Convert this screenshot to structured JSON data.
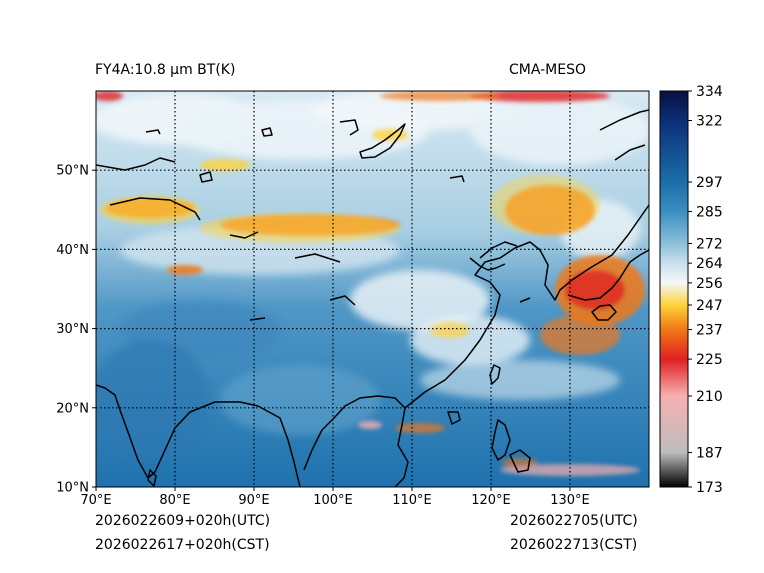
{
  "header": {
    "left_title": "FY4A:10.8 μm BT(K)",
    "right_title": "CMA-MESO"
  },
  "footer": {
    "init_utc": "2026022609+020h(UTC)",
    "init_cst": "2026022617+020h(CST)",
    "valid_utc": "2026022705(UTC)",
    "valid_cst": "2026022713(CST)"
  },
  "map": {
    "lon_range": [
      70,
      140
    ],
    "lat_range": [
      10,
      60
    ],
    "lon_ticks": [
      {
        "value": 70,
        "label": "70°E"
      },
      {
        "value": 80,
        "label": "80°E"
      },
      {
        "value": 90,
        "label": "90°E"
      },
      {
        "value": 100,
        "label": "100°E"
      },
      {
        "value": 110,
        "label": "110°E"
      },
      {
        "value": 120,
        "label": "120°E"
      },
      {
        "value": 130,
        "label": "130°E"
      }
    ],
    "lat_ticks": [
      {
        "value": 10,
        "label": "10°N"
      },
      {
        "value": 20,
        "label": "20°N"
      },
      {
        "value": 30,
        "label": "30°N"
      },
      {
        "value": 40,
        "label": "40°N"
      },
      {
        "value": 50,
        "label": "50°N"
      }
    ],
    "gridlines": "dotted"
  },
  "colorbar": {
    "range": [
      173,
      334
    ],
    "ticks": [
      {
        "value": 334,
        "label": "334"
      },
      {
        "value": 322,
        "label": "322"
      },
      {
        "value": 297,
        "label": "297"
      },
      {
        "value": 285,
        "label": "285"
      },
      {
        "value": 272,
        "label": "272"
      },
      {
        "value": 264,
        "label": "264"
      },
      {
        "value": 256,
        "label": "256"
      },
      {
        "value": 247,
        "label": "247"
      },
      {
        "value": 237,
        "label": "237"
      },
      {
        "value": 225,
        "label": "225"
      },
      {
        "value": 210,
        "label": "210"
      },
      {
        "value": 187,
        "label": "187"
      },
      {
        "value": 173,
        "label": "173"
      }
    ],
    "colors": {
      "334": "#08103d",
      "322": "#0a2f78",
      "297": "#1c6ea8",
      "285": "#3a8fc0",
      "272": "#8cc0da",
      "264": "#c8e0ec",
      "256": "#f4f8fa",
      "247": "#ffd23a",
      "237": "#f07818",
      "225": "#e02020",
      "210": "#f6b0b0",
      "187": "#bdbdbd",
      "173": "#000000"
    }
  }
}
